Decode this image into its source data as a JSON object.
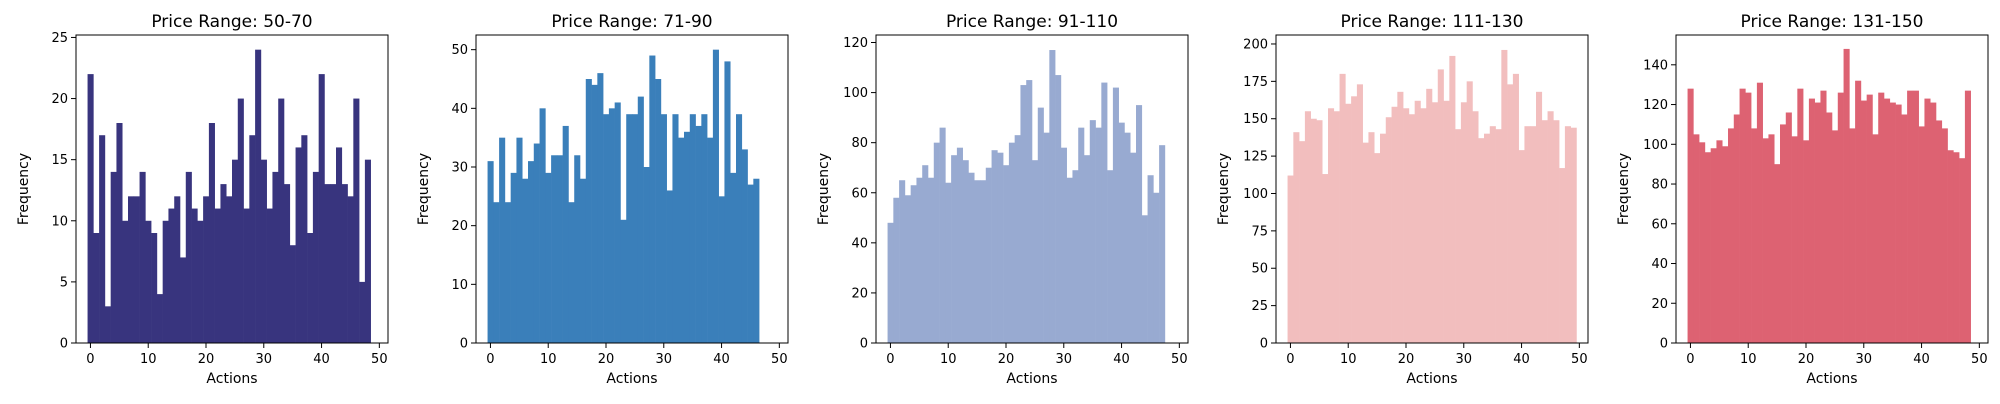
{
  "chart_data": [
    {
      "type": "bar",
      "title": "Price Range: 50-70",
      "xlabel": "Actions",
      "ylabel": "Frequency",
      "color": "#38347e",
      "x": [
        0,
        1,
        2,
        3,
        4,
        5,
        6,
        7,
        8,
        9,
        10,
        11,
        12,
        13,
        14,
        15,
        16,
        17,
        18,
        19,
        20,
        21,
        22,
        23,
        24,
        25,
        26,
        27,
        28,
        29,
        30,
        31,
        32,
        33,
        34,
        35,
        36,
        37,
        38,
        39,
        40,
        41,
        42,
        43,
        44,
        45,
        46,
        47,
        48,
        49
      ],
      "values": [
        22,
        9,
        17,
        3,
        14,
        18,
        10,
        12,
        12,
        14,
        10,
        9,
        4,
        10,
        11,
        12,
        7,
        14,
        11,
        10,
        12,
        18,
        11,
        13,
        12,
        15,
        20,
        11,
        17,
        24,
        15,
        11,
        14,
        20,
        13,
        8,
        16,
        17,
        9,
        14,
        22,
        13,
        13,
        16,
        13,
        12,
        20,
        5,
        15,
        0
      ],
      "xlim": [
        -2.5,
        51.5
      ],
      "ylim": [
        0,
        25.2
      ],
      "xticks": [
        0,
        10,
        20,
        30,
        40,
        50
      ],
      "yticks": [
        0,
        5,
        10,
        15,
        20,
        25
      ],
      "grid": false
    },
    {
      "type": "bar",
      "title": "Price Range: 71-90",
      "xlabel": "Actions",
      "ylabel": "Frequency",
      "color": "#3a7fba",
      "x": [
        0,
        1,
        2,
        3,
        4,
        5,
        6,
        7,
        8,
        9,
        10,
        11,
        12,
        13,
        14,
        15,
        16,
        17,
        18,
        19,
        20,
        21,
        22,
        23,
        24,
        25,
        26,
        27,
        28,
        29,
        30,
        31,
        32,
        33,
        34,
        35,
        36,
        37,
        38,
        39,
        40,
        41,
        42,
        43,
        44,
        45,
        46,
        47,
        48,
        49
      ],
      "values": [
        31,
        24,
        35,
        24,
        29,
        35,
        28,
        31,
        34,
        40,
        29,
        32,
        32,
        37,
        24,
        32,
        28,
        45,
        44,
        46,
        39,
        40,
        41,
        21,
        39,
        39,
        42,
        30,
        49,
        45,
        39,
        26,
        39,
        35,
        36,
        39,
        37,
        39,
        35,
        50,
        25,
        48,
        29,
        39,
        33,
        27,
        28,
        0,
        0,
        0
      ],
      "xlim": [
        -2.5,
        51.5
      ],
      "ylim": [
        0,
        52.5
      ],
      "xticks": [
        0,
        10,
        20,
        30,
        40,
        50
      ],
      "yticks": [
        0,
        10,
        20,
        30,
        40,
        50
      ],
      "grid": false
    },
    {
      "type": "bar",
      "title": "Price Range: 91-110",
      "xlabel": "Actions",
      "ylabel": "Frequency",
      "color": "#98aad1",
      "x": [
        0,
        1,
        2,
        3,
        4,
        5,
        6,
        7,
        8,
        9,
        10,
        11,
        12,
        13,
        14,
        15,
        16,
        17,
        18,
        19,
        20,
        21,
        22,
        23,
        24,
        25,
        26,
        27,
        28,
        29,
        30,
        31,
        32,
        33,
        34,
        35,
        36,
        37,
        38,
        39,
        40,
        41,
        42,
        43,
        44,
        45,
        46,
        47,
        48,
        49
      ],
      "values": [
        48,
        58,
        65,
        59,
        63,
        66,
        71,
        66,
        80,
        86,
        64,
        75,
        78,
        73,
        68,
        65,
        65,
        70,
        77,
        76,
        71,
        80,
        83,
        103,
        105,
        73,
        94,
        84,
        117,
        107,
        78,
        66,
        69,
        86,
        75,
        89,
        86,
        104,
        69,
        102,
        88,
        84,
        76,
        95,
        51,
        67,
        60,
        79,
        0,
        0
      ],
      "xlim": [
        -2.5,
        51.5
      ],
      "ylim": [
        0,
        123
      ],
      "xticks": [
        0,
        10,
        20,
        30,
        40,
        50
      ],
      "yticks": [
        0,
        20,
        40,
        60,
        80,
        100,
        120
      ],
      "grid": false
    },
    {
      "type": "bar",
      "title": "Price Range: 111-130",
      "xlabel": "Actions",
      "ylabel": "Frequency",
      "color": "#f2bebe",
      "x": [
        0,
        1,
        2,
        3,
        4,
        5,
        6,
        7,
        8,
        9,
        10,
        11,
        12,
        13,
        14,
        15,
        16,
        17,
        18,
        19,
        20,
        21,
        22,
        23,
        24,
        25,
        26,
        27,
        28,
        29,
        30,
        31,
        32,
        33,
        34,
        35,
        36,
        37,
        38,
        39,
        40,
        41,
        42,
        43,
        44,
        45,
        46,
        47,
        48,
        49
      ],
      "values": [
        112,
        141,
        135,
        155,
        150,
        149,
        113,
        157,
        155,
        180,
        160,
        165,
        173,
        134,
        141,
        127,
        140,
        151,
        158,
        168,
        157,
        153,
        162,
        157,
        170,
        161,
        183,
        162,
        192,
        143,
        161,
        175,
        155,
        137,
        140,
        145,
        143,
        196,
        173,
        180,
        129,
        145,
        145,
        168,
        149,
        155,
        149,
        117,
        145,
        144
      ],
      "xlim": [
        -2.5,
        51.5
      ],
      "ylim": [
        0,
        206
      ],
      "xticks": [
        0,
        10,
        20,
        30,
        40,
        50
      ],
      "yticks": [
        0,
        25,
        50,
        75,
        100,
        125,
        150,
        175,
        200
      ],
      "grid": false
    },
    {
      "type": "bar",
      "title": "Price Range: 131-150",
      "xlabel": "Actions",
      "ylabel": "Frequency",
      "color": "#dd6272",
      "x": [
        0,
        1,
        2,
        3,
        4,
        5,
        6,
        7,
        8,
        9,
        10,
        11,
        12,
        13,
        14,
        15,
        16,
        17,
        18,
        19,
        20,
        21,
        22,
        23,
        24,
        25,
        26,
        27,
        28,
        29,
        30,
        31,
        32,
        33,
        34,
        35,
        36,
        37,
        38,
        39,
        40,
        41,
        42,
        43,
        44,
        45,
        46,
        47,
        48,
        49
      ],
      "values": [
        128,
        105,
        101,
        96,
        98,
        102,
        99,
        108,
        115,
        128,
        126,
        108,
        131,
        103,
        105,
        90,
        110,
        116,
        104,
        128,
        102,
        123,
        121,
        127,
        116,
        107,
        126,
        148,
        108,
        132,
        122,
        125,
        105,
        126,
        123,
        121,
        120,
        115,
        127,
        127,
        109,
        123,
        121,
        112,
        108,
        97,
        96,
        93,
        127,
        0
      ],
      "xlim": [
        -2.5,
        51.5
      ],
      "ylim": [
        0,
        155
      ],
      "xticks": [
        0,
        10,
        20,
        30,
        40,
        50
      ],
      "yticks": [
        0,
        20,
        40,
        60,
        80,
        100,
        120,
        140
      ],
      "grid": false
    }
  ]
}
